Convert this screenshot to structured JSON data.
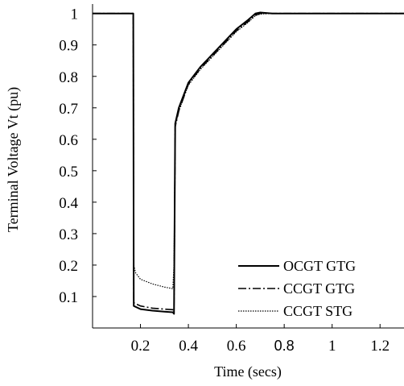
{
  "chart_data": {
    "type": "line",
    "title": "",
    "xlabel": "Time (secs)",
    "ylabel": "Terminal Voltage Vt (pu)",
    "xlim": [
      0,
      1.3
    ],
    "ylim": [
      0,
      1.03
    ],
    "x_ticks": [
      {
        "value": 0.2,
        "label": "0.2"
      },
      {
        "value": 0.4,
        "label": "0.4"
      },
      {
        "value": 0.6,
        "label": "0.6"
      },
      {
        "value": 0.8,
        "label": "0.8"
      },
      {
        "value": 1.0,
        "label": "1"
      },
      {
        "value": 1.2,
        "label": "1.2"
      }
    ],
    "y_ticks": [
      {
        "value": 0.1,
        "label": "0.1"
      },
      {
        "value": 0.2,
        "label": "0.2"
      },
      {
        "value": 0.3,
        "label": "0.3"
      },
      {
        "value": 0.4,
        "label": "0.4"
      },
      {
        "value": 0.5,
        "label": "0.5"
      },
      {
        "value": 0.6,
        "label": "0.6"
      },
      {
        "value": 0.7,
        "label": "0.7"
      },
      {
        "value": 0.8,
        "label": "0.8"
      },
      {
        "value": 0.9,
        "label": "0.9"
      },
      {
        "value": 1.0,
        "label": "1"
      }
    ],
    "grid": false,
    "legend_position": "bottom-right",
    "series": [
      {
        "name": "OCGT GTG",
        "style": "solid",
        "color": "#000000",
        "points": [
          [
            0.0,
            1.0
          ],
          [
            0.17,
            1.0
          ],
          [
            0.172,
            0.07
          ],
          [
            0.2,
            0.06
          ],
          [
            0.25,
            0.055
          ],
          [
            0.3,
            0.052
          ],
          [
            0.335,
            0.05
          ],
          [
            0.34,
            0.045
          ],
          [
            0.345,
            0.65
          ],
          [
            0.36,
            0.7
          ],
          [
            0.4,
            0.78
          ],
          [
            0.45,
            0.83
          ],
          [
            0.5,
            0.87
          ],
          [
            0.55,
            0.91
          ],
          [
            0.6,
            0.95
          ],
          [
            0.65,
            0.98
          ],
          [
            0.68,
            1.0
          ],
          [
            0.7,
            1.003
          ],
          [
            0.75,
            1.0
          ],
          [
            0.8,
            1.0
          ],
          [
            0.9,
            1.0
          ],
          [
            1.0,
            1.0
          ],
          [
            1.1,
            1.0
          ],
          [
            1.2,
            1.0
          ],
          [
            1.3,
            1.0
          ]
        ]
      },
      {
        "name": "CCGT GTG",
        "style": "dash-dot",
        "color": "#000000",
        "points": [
          [
            0.0,
            1.0
          ],
          [
            0.17,
            1.0
          ],
          [
            0.172,
            0.08
          ],
          [
            0.2,
            0.07
          ],
          [
            0.25,
            0.063
          ],
          [
            0.3,
            0.06
          ],
          [
            0.335,
            0.058
          ],
          [
            0.34,
            0.055
          ],
          [
            0.345,
            0.64
          ],
          [
            0.36,
            0.69
          ],
          [
            0.4,
            0.775
          ],
          [
            0.45,
            0.825
          ],
          [
            0.5,
            0.865
          ],
          [
            0.55,
            0.905
          ],
          [
            0.6,
            0.945
          ],
          [
            0.65,
            0.975
          ],
          [
            0.68,
            0.995
          ],
          [
            0.7,
            1.0
          ],
          [
            0.75,
            1.0
          ],
          [
            0.8,
            1.0
          ],
          [
            0.9,
            1.0
          ],
          [
            1.0,
            1.0
          ],
          [
            1.1,
            1.0
          ],
          [
            1.2,
            1.0
          ],
          [
            1.3,
            1.0
          ]
        ]
      },
      {
        "name": "CCGT STG",
        "style": "dotted",
        "color": "#000000",
        "points": [
          [
            0.0,
            1.0
          ],
          [
            0.17,
            1.0
          ],
          [
            0.172,
            0.2
          ],
          [
            0.18,
            0.175
          ],
          [
            0.2,
            0.155
          ],
          [
            0.25,
            0.14
          ],
          [
            0.3,
            0.13
          ],
          [
            0.335,
            0.125
          ],
          [
            0.34,
            0.2
          ],
          [
            0.345,
            0.64
          ],
          [
            0.36,
            0.69
          ],
          [
            0.4,
            0.772
          ],
          [
            0.45,
            0.822
          ],
          [
            0.5,
            0.862
          ],
          [
            0.55,
            0.902
          ],
          [
            0.6,
            0.942
          ],
          [
            0.65,
            0.972
          ],
          [
            0.68,
            0.993
          ],
          [
            0.7,
            0.998
          ],
          [
            0.75,
            1.0
          ],
          [
            0.8,
            1.0
          ],
          [
            0.9,
            1.0
          ],
          [
            1.0,
            1.0
          ],
          [
            1.1,
            1.0
          ],
          [
            1.2,
            1.0
          ],
          [
            1.3,
            1.0
          ]
        ]
      }
    ]
  }
}
